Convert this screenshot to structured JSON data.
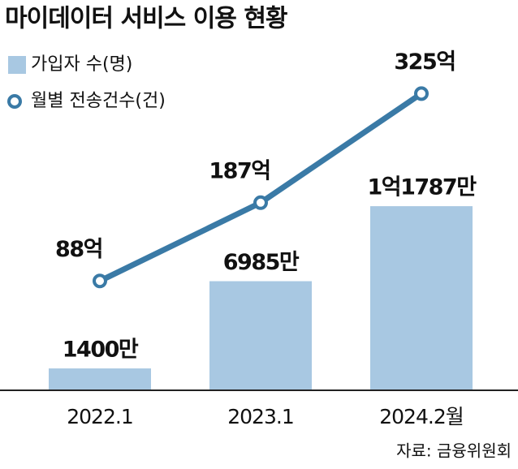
{
  "chart_data": {
    "type": "bar",
    "title": "마이데이터 서비스 이용 현황",
    "categories": [
      "2022.1",
      "2023.1",
      "2024.2월"
    ],
    "series": [
      {
        "name": "가입자 수(명)",
        "type": "bar",
        "color": "#a8c8e2",
        "values": [
          1400,
          6985,
          11787
        ],
        "value_labels": [
          "1400만",
          "6985만",
          "1억1787만"
        ]
      },
      {
        "name": "월별 전송건수(건)",
        "type": "line",
        "axis": "y2",
        "color": "#3a7aa6",
        "values": [
          88,
          187,
          325
        ],
        "value_labels": [
          "88억",
          "187억",
          "325억"
        ]
      }
    ],
    "ylim": [
      0,
      12000
    ],
    "y2lim": [
      0,
      350
    ],
    "source": "자료: 금융위원회"
  }
}
